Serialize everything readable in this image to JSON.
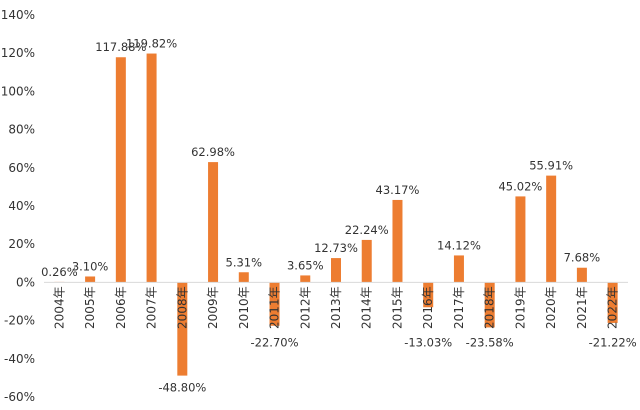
{
  "chart_data": {
    "type": "bar",
    "title": "",
    "xlabel": "",
    "ylabel": "",
    "ylim": [
      -60,
      140
    ],
    "yticks": [
      -60,
      -40,
      -20,
      0,
      20,
      40,
      60,
      80,
      100,
      120,
      140
    ],
    "ytick_labels": [
      "-60%",
      "-40%",
      "-20%",
      "0%",
      "20%",
      "40%",
      "60%",
      "80%",
      "100%",
      "120%",
      "140%"
    ],
    "grid": false,
    "legend": "none",
    "bar_color": "#ED7D31",
    "categories": [
      "2004年",
      "2005年",
      "2006年",
      "2007年",
      "2008年",
      "2009年",
      "2010年",
      "2011年",
      "2012年",
      "2013年",
      "2014年",
      "2015年",
      "2016年",
      "2017年",
      "2018年",
      "2019年",
      "2020年",
      "2021年",
      "2022年"
    ],
    "values": [
      0.26,
      3.1,
      117.88,
      119.82,
      -48.8,
      62.98,
      5.31,
      -22.7,
      3.65,
      12.73,
      22.24,
      43.17,
      -13.03,
      14.12,
      -23.58,
      45.02,
      55.91,
      7.68,
      -21.22
    ],
    "data_labels": [
      "0.26%",
      "3.10%",
      "117.88%",
      "119.82%",
      "-48.80%",
      "62.98%",
      "5.31%",
      "-22.70%",
      "3.65%",
      "12.73%",
      "22.24%",
      "43.17%",
      "-13.03%",
      "14.12%",
      "-23.58%",
      "45.02%",
      "55.91%",
      "7.68%",
      "-21.22%"
    ]
  }
}
